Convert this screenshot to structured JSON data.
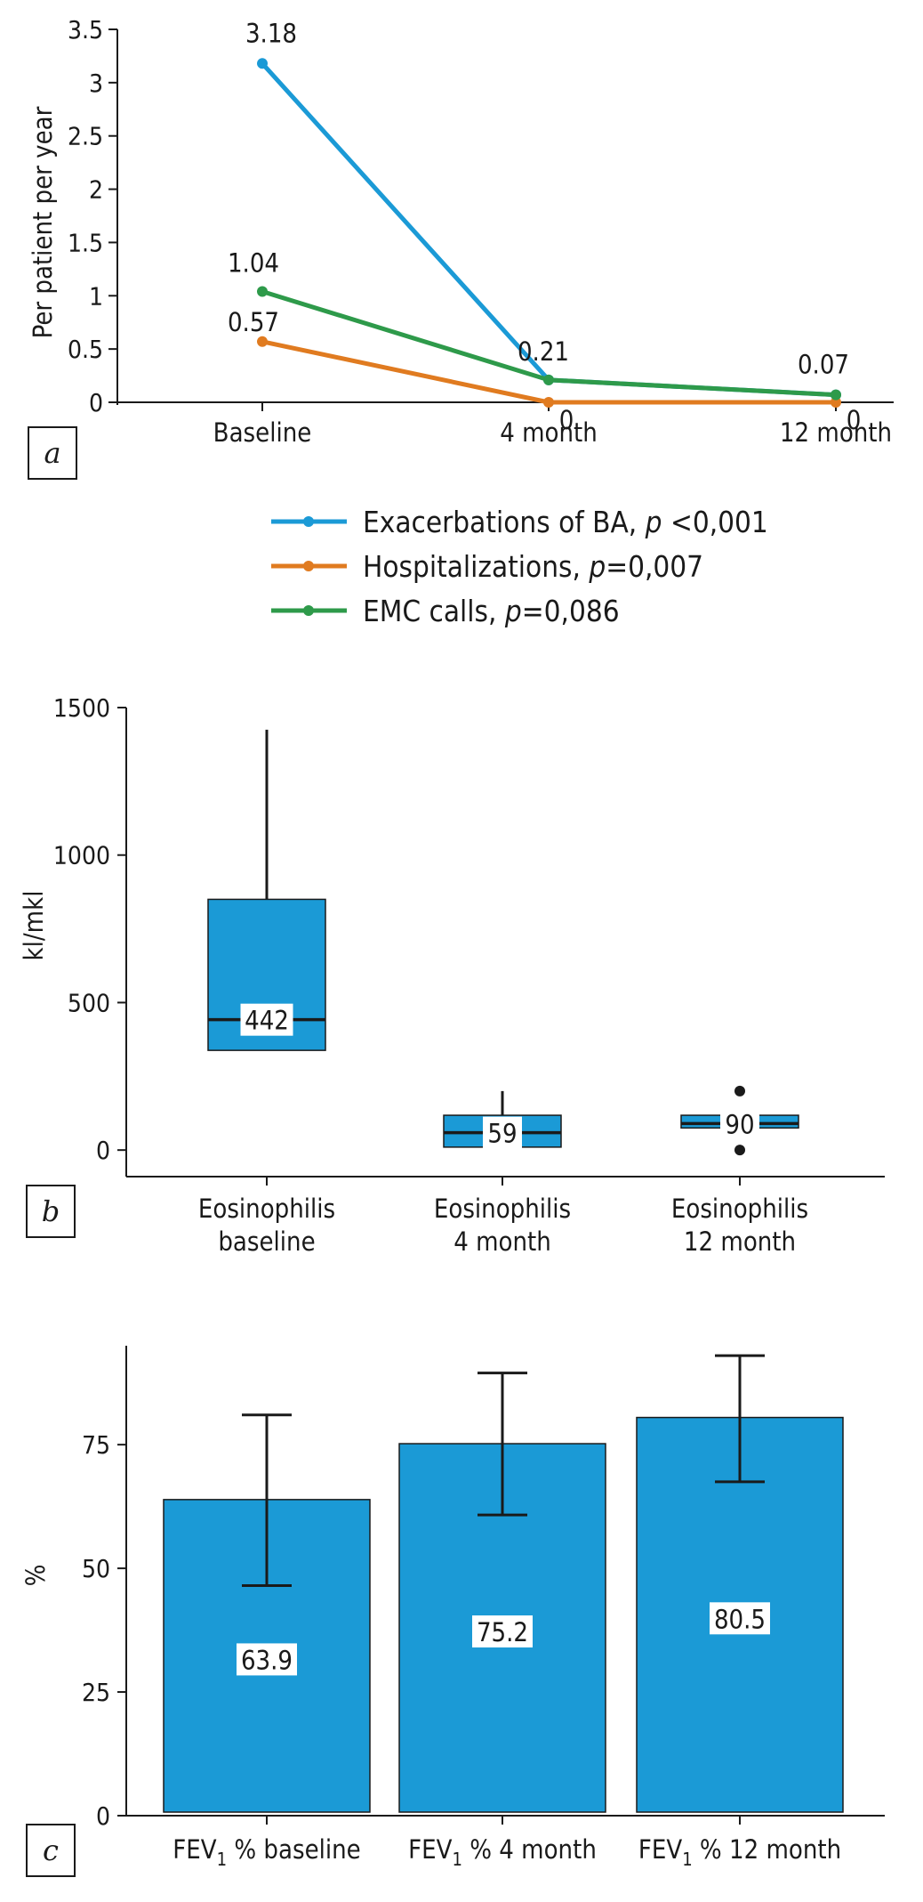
{
  "colors": {
    "blue": "#1b9ad6",
    "orange": "#e07b20",
    "green": "#2e9a4a",
    "box": "#1b9ad6",
    "axis": "#1a1a1a"
  },
  "chart_data": [
    {
      "panel": "a",
      "type": "line",
      "categories": [
        "Baseline",
        "4 month",
        "12 month"
      ],
      "ylabel": "Per patient per year",
      "ylim": [
        0,
        3.5
      ],
      "yticks": [
        "0",
        "0.5",
        "1",
        "1.5",
        "2",
        "2.5",
        "3",
        "3.5"
      ],
      "series": [
        {
          "name": "Exacerbations of BA, ",
          "p_sym": "p",
          "p_val": " <0,001",
          "color_key": "blue",
          "values": [
            3.18,
            0.21,
            0.07
          ],
          "labels": [
            "3.18",
            "0.21",
            "0.07"
          ]
        },
        {
          "name": "Hospitalizations, ",
          "p_sym": "p",
          "p_val": "=0,007",
          "color_key": "orange",
          "values": [
            0.57,
            0,
            0
          ],
          "labels": [
            "0.57",
            "0",
            "0"
          ]
        },
        {
          "name": "EMC calls, ",
          "p_sym": "p",
          "p_val": "=0,086",
          "color_key": "green",
          "values": [
            1.04,
            0.21,
            0.07
          ],
          "labels": [
            "1.04",
            "",
            ""
          ]
        }
      ]
    },
    {
      "panel": "b",
      "type": "box",
      "ylabel": "kl/mkl",
      "ylim": [
        -90,
        1500
      ],
      "yticks": [
        "0",
        "500",
        "1000",
        "1500"
      ],
      "categories": [
        {
          "line1": "Eosinophilis",
          "line2": "baseline"
        },
        {
          "line1": "Eosinophilis",
          "line2": "4 month"
        },
        {
          "line1": "Eosinophilis",
          "line2": "12 month"
        }
      ],
      "boxes": [
        {
          "median": 442,
          "q1": 338,
          "q3": 850,
          "whisker_low": 338,
          "whisker_high": 1425,
          "median_label": "442",
          "outliers": []
        },
        {
          "median": 59,
          "q1": 10,
          "q3": 118,
          "whisker_low": 10,
          "whisker_high": 200,
          "median_label": "59",
          "outliers": []
        },
        {
          "median": 90,
          "q1": 75,
          "q3": 118,
          "whisker_low": 75,
          "whisker_high": 118,
          "median_label": "90",
          "outliers": [
            200,
            0
          ]
        }
      ]
    },
    {
      "panel": "c",
      "type": "bar",
      "ylabel": "%",
      "ylim": [
        0,
        95
      ],
      "yticks": [
        "0",
        "25",
        "50",
        "75"
      ],
      "categories": [
        {
          "pre": "FEV",
          "sub": "1",
          "post": " % baseline"
        },
        {
          "pre": "FEV",
          "sub": "1",
          "post": " % 4 month"
        },
        {
          "pre": "FEV",
          "sub": "1",
          "post": " % 12 month"
        }
      ],
      "values": [
        63.9,
        75.2,
        80.5
      ],
      "value_labels": [
        "63.9",
        "75.2",
        "80.5"
      ],
      "error_low": [
        46.5,
        60.8,
        67.5
      ],
      "error_high": [
        81,
        89.5,
        93
      ]
    }
  ]
}
